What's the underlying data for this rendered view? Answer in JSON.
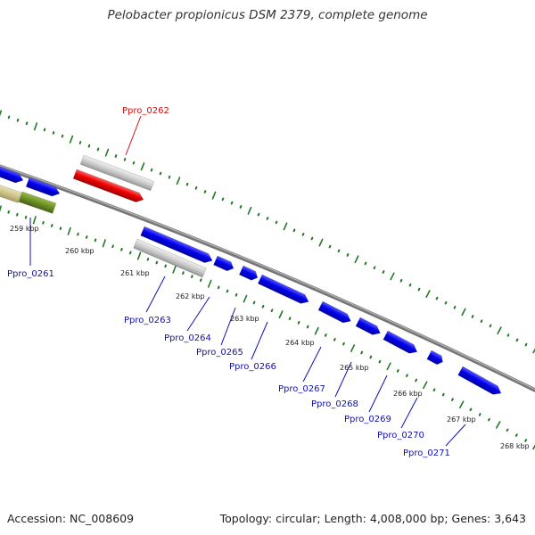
{
  "title": "Pelobacter propionicus DSM 2379, complete genome",
  "footer": {
    "accession": "Accession: NC_008609",
    "summary": "Topology: circular; Length: 4,008,000 bp; Genes: 3,643"
  },
  "colors": {
    "backbone": "#8a8a8a",
    "tick": "#1f7a1f",
    "gene_forward": "#0000ee",
    "gene_highlight": "#ee0000",
    "gene_gray": "#cccccc",
    "gene_olive": "#6b8e23",
    "gene_tan": "#cdc48a",
    "label_blue": "#1010b0",
    "label_red": "#d01010"
  },
  "scale_labels": [
    "259 kbp",
    "260 kbp",
    "261 kbp",
    "262 kbp",
    "263 kbp",
    "264 kbp",
    "265 kbp",
    "266 kbp",
    "267 kbp",
    "268 kbp"
  ],
  "gene_labels": [
    "Ppro_0262",
    "Ppro_0261",
    "Ppro_0263",
    "Ppro_0264",
    "Ppro_0265",
    "Ppro_0266",
    "Ppro_0267",
    "Ppro_0268",
    "Ppro_0269",
    "Ppro_0270",
    "Ppro_0271"
  ]
}
